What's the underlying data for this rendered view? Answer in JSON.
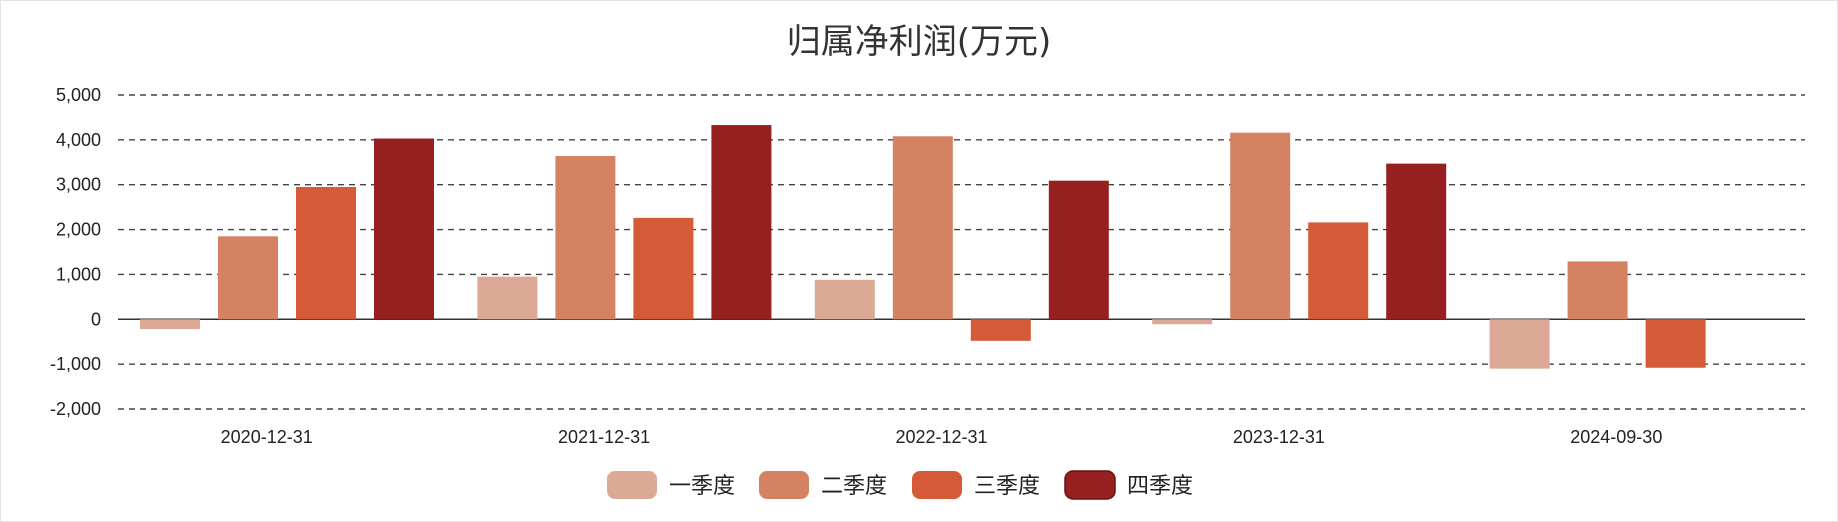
{
  "chart_data": {
    "type": "bar",
    "title": "归属净利润(万元)",
    "xlabel": "",
    "ylabel": "",
    "categories": [
      "2020-12-31",
      "2021-12-31",
      "2022-12-31",
      "2023-12-31",
      "2024-09-30"
    ],
    "series": [
      {
        "name": "一季度",
        "color": "#dba996",
        "values": [
          -220,
          950,
          880,
          -110,
          -1100
        ]
      },
      {
        "name": "二季度",
        "color": "#d58263",
        "values": [
          1850,
          3640,
          4080,
          4160,
          1290
        ]
      },
      {
        "name": "三季度",
        "color": "#d55a37",
        "values": [
          2950,
          2260,
          -480,
          2160,
          -1080
        ]
      },
      {
        "name": "四季度",
        "color": "#96201f",
        "values": [
          4030,
          4330,
          3090,
          3470,
          null
        ]
      }
    ],
    "yticks": [
      "5,000",
      "4,000",
      "3,000",
      "2,000",
      "1,000",
      "0",
      "-1,000",
      "-2,000"
    ],
    "ylim": [
      -2000,
      5000
    ],
    "grid": true,
    "legend_position": "bottom-center"
  }
}
